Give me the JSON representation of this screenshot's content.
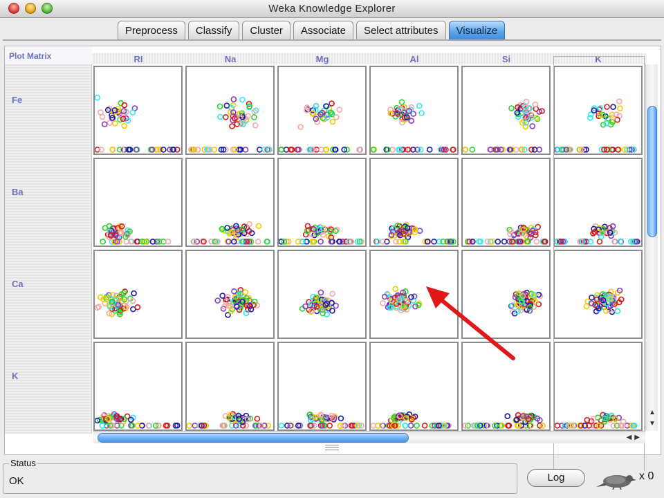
{
  "window": {
    "title": "Weka Knowledge Explorer"
  },
  "tabs": [
    {
      "label": "Preprocess",
      "active": false
    },
    {
      "label": "Classify",
      "active": false
    },
    {
      "label": "Cluster",
      "active": false
    },
    {
      "label": "Associate",
      "active": false
    },
    {
      "label": "Select attributes",
      "active": false
    },
    {
      "label": "Visualize",
      "active": true
    }
  ],
  "plot_matrix": {
    "header": "Plot Matrix",
    "columns": [
      "RI",
      "Na",
      "Mg",
      "Al",
      "Si",
      "K"
    ],
    "rows": [
      "Fe",
      "Ba",
      "Ca",
      "K"
    ],
    "class_colors": [
      "#1a1aa8",
      "#d81818",
      "#28d828",
      "#f0cc00",
      "#f4a8a8",
      "#30e8f0",
      "#8040c0"
    ]
  },
  "status": {
    "title": "Status",
    "text": "OK"
  },
  "log_button": {
    "label": "Log"
  },
  "task_count": "x 0",
  "annotation": {
    "color": "#e01818"
  }
}
